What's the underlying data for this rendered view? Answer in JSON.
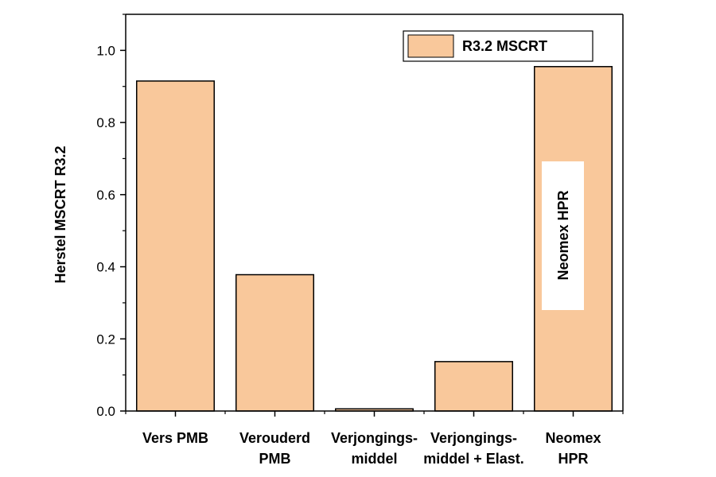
{
  "chart_data": {
    "type": "bar",
    "categories": [
      [
        "Vers PMB"
      ],
      [
        "Verouderd",
        "PMB"
      ],
      [
        "Verjongings-",
        "middel"
      ],
      [
        "Verjongings-",
        "middel + Elast."
      ],
      [
        "Neomex",
        "HPR"
      ]
    ],
    "series": [
      {
        "name": "R3.2 MSCRT",
        "values": [
          0.915,
          0.378,
          0.006,
          0.137,
          0.955
        ]
      }
    ],
    "ylabel": "Herstel MSCRT R3.2",
    "ylim": [
      0,
      1.1
    ],
    "yticks": [
      "0.0",
      "0.2",
      "0.4",
      "0.6",
      "0.8",
      "1.0"
    ],
    "ytick_values": [
      0,
      0.2,
      0.4,
      0.6,
      0.8,
      1.0
    ],
    "legend_position": "top-right",
    "annotation": {
      "text": "Neomex HPR",
      "bar_index": 4
    },
    "grid": false,
    "colors": {
      "bar_fill": "#f9c89b",
      "bar_stroke": "#000000"
    }
  }
}
